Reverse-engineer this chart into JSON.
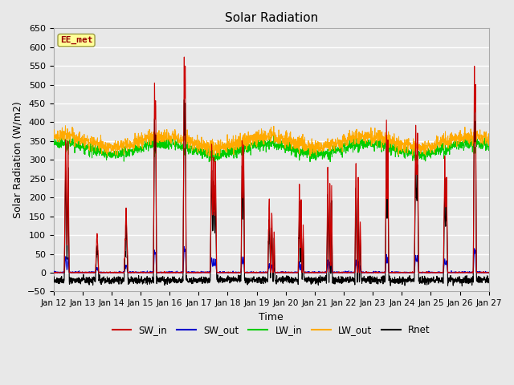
{
  "title": "Solar Radiation",
  "xlabel": "Time",
  "ylabel": "Solar Radiation (W/m2)",
  "ylim": [
    -50,
    650
  ],
  "n_days": 15,
  "start_day": 12,
  "colors": {
    "SW_in": "#cc0000",
    "SW_out": "#0000cc",
    "LW_in": "#00cc00",
    "LW_out": "#ffaa00",
    "Rnet": "#000000"
  },
  "label_box": "EE_met",
  "label_box_color": "#ffff99",
  "label_box_text_color": "#990000",
  "plot_bg_color": "#e8e8e8",
  "grid_color": "#ffffff",
  "legend_entries": [
    "SW_in",
    "SW_out",
    "LW_in",
    "LW_out",
    "Rnet"
  ]
}
